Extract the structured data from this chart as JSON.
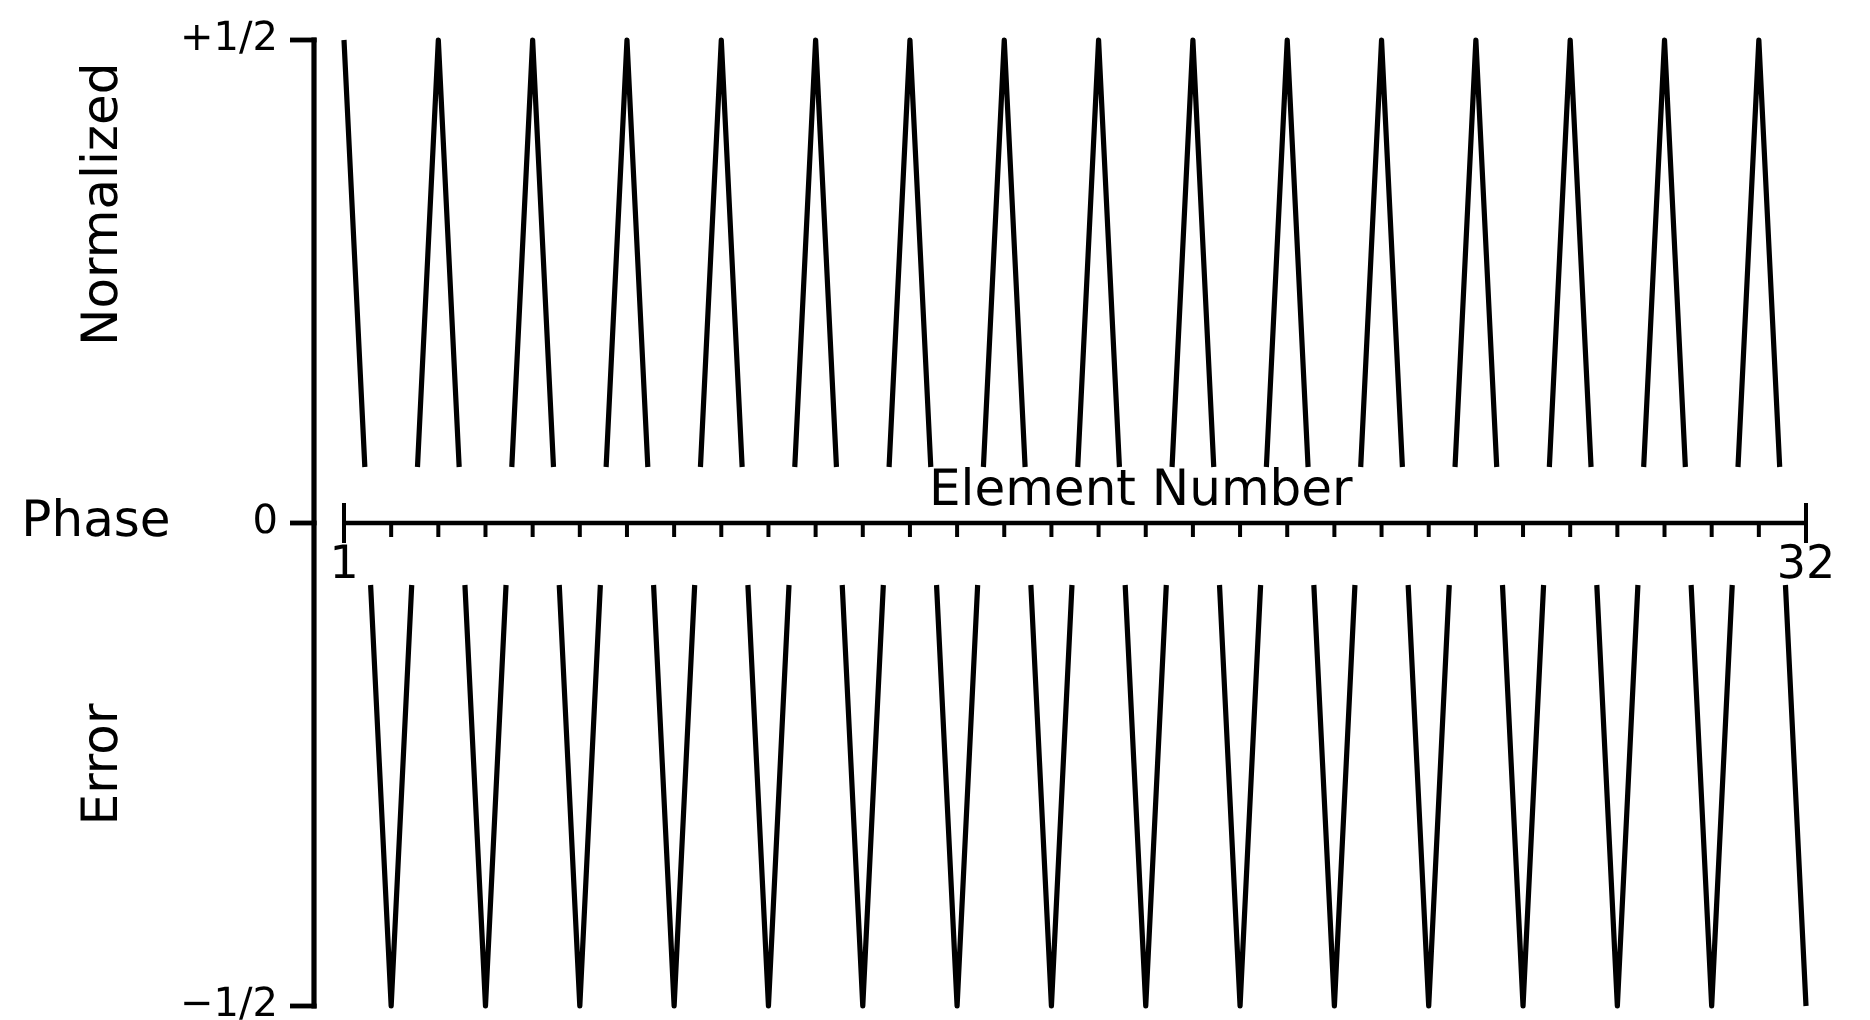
{
  "chart_data": {
    "type": "line",
    "xlabel": "Element Number",
    "ylabel": "Normalized Phase Error",
    "x": [
      1,
      2,
      3,
      4,
      5,
      6,
      7,
      8,
      9,
      10,
      11,
      12,
      13,
      14,
      15,
      16,
      17,
      18,
      19,
      20,
      21,
      22,
      23,
      24,
      25,
      26,
      27,
      28,
      29,
      30,
      31,
      32
    ],
    "values": [
      0.5,
      -0.5,
      0.5,
      -0.5,
      0.5,
      -0.5,
      0.5,
      -0.5,
      0.5,
      -0.5,
      0.5,
      -0.5,
      0.5,
      -0.5,
      0.5,
      -0.5,
      0.5,
      -0.5,
      0.5,
      -0.5,
      0.5,
      -0.5,
      0.5,
      -0.5,
      0.5,
      -0.5,
      0.5,
      -0.5,
      0.5,
      -0.5,
      0.5,
      -0.5
    ],
    "color": "#000000",
    "xlim": [
      1,
      32
    ],
    "xticks": [
      1,
      {
        "value": 2,
        "label": null
      },
      {
        "value": 3,
        "label": null
      },
      {
        "value": 4,
        "label": null
      },
      {
        "value": 5,
        "label": null
      },
      {
        "value": 6,
        "label": null
      },
      {
        "value": 7,
        "label": null
      },
      {
        "value": 8,
        "label": null
      },
      {
        "value": 9,
        "label": null
      },
      {
        "value": 10,
        "label": null
      },
      {
        "value": 11,
        "label": null
      },
      {
        "value": 12,
        "label": null
      },
      {
        "value": 13,
        "label": null
      },
      {
        "value": 14,
        "label": null
      },
      {
        "value": 15,
        "label": null
      },
      {
        "value": 16,
        "label": null
      },
      {
        "value": 17,
        "label": null
      },
      {
        "value": 18,
        "label": null
      },
      {
        "value": 19,
        "label": null
      },
      {
        "value": 20,
        "label": null
      },
      {
        "value": 21,
        "label": null
      },
      {
        "value": 22,
        "label": null
      },
      {
        "value": 23,
        "label": null
      },
      {
        "value": 24,
        "label": null
      },
      {
        "value": 25,
        "label": null
      },
      {
        "value": 26,
        "label": null
      },
      {
        "value": 27,
        "label": null
      },
      {
        "value": 28,
        "label": null
      },
      {
        "value": 29,
        "label": null
      },
      {
        "value": 30,
        "label": null
      },
      {
        "value": 31,
        "label": null
      },
      32
    ],
    "ylim": [
      -0.5,
      0.5
    ],
    "yticks": [
      {
        "value": -0.5,
        "label": "−1/2"
      },
      0,
      {
        "value": 0.5,
        "label": "+1/2"
      }
    ]
  }
}
